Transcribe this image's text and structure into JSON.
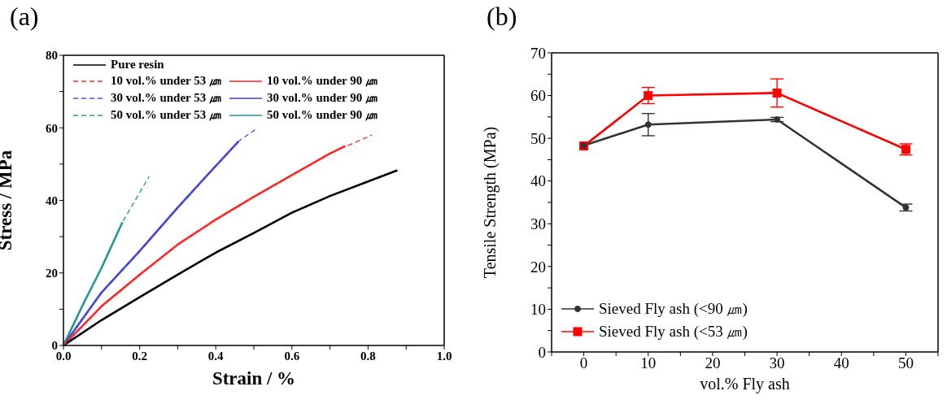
{
  "chart_data": [
    {
      "type": "line",
      "title": "(a)",
      "xlabel": "Strain / %",
      "ylabel": "Stress / MPa",
      "xlim": [
        0,
        1
      ],
      "ylim": [
        0,
        80
      ],
      "xticks": [
        {
          "value": 0,
          "label": "0.0"
        },
        {
          "value": 0.1,
          "label": null
        },
        {
          "value": 0.2,
          "label": "0.2"
        },
        {
          "value": 0.3,
          "label": null
        },
        {
          "value": 0.4,
          "label": "0.4"
        },
        {
          "value": 0.5,
          "label": null
        },
        {
          "value": 0.6,
          "label": "0.6"
        },
        {
          "value": 0.7,
          "label": null
        },
        {
          "value": 0.8,
          "label": "0.8"
        },
        {
          "value": 0.9,
          "label": null
        },
        {
          "value": 1,
          "label": "1.0"
        }
      ],
      "yticks": [
        0,
        {
          "value": 10,
          "label": null
        },
        20,
        {
          "value": 30,
          "label": null
        },
        40,
        {
          "value": 50,
          "label": null
        },
        60,
        {
          "value": 70,
          "label": null
        },
        80
      ],
      "legend": "top left",
      "marker": "none",
      "series": [
        {
          "name": "Pure resin",
          "color": "#000000",
          "line_style": "solid",
          "x": [
            0,
            0.1,
            0.2,
            0.3,
            0.4,
            0.5,
            0.6,
            0.7,
            0.8,
            0.877
          ],
          "values": [
            0,
            7,
            13.3,
            19.5,
            25.6,
            31,
            36.6,
            41.2,
            45.2,
            48.3
          ]
        },
        {
          "name": "10 vol.% under 53 ㎛",
          "color": "#ff3333",
          "line_style": "dashed",
          "x": [
            0,
            0.1,
            0.2,
            0.3,
            0.4,
            0.5,
            0.6,
            0.7,
            0.81
          ],
          "values": [
            0,
            10.8,
            19.5,
            27.8,
            34.7,
            41,
            47,
            52.9,
            58
          ]
        },
        {
          "name": "10 vol.% under 90 ㎛",
          "color": "#ff2020",
          "line_style": "solid",
          "x": [
            0,
            0.1,
            0.2,
            0.3,
            0.4,
            0.5,
            0.6,
            0.7,
            0.74
          ],
          "values": [
            0,
            10.8,
            19.5,
            27.8,
            34.7,
            41,
            47,
            52.9,
            55
          ]
        },
        {
          "name": "30 vol.% under 53 ㎛",
          "color": "#5050e0",
          "line_style": "dashed",
          "x": [
            0,
            0.1,
            0.2,
            0.3,
            0.4,
            0.46,
            0.51
          ],
          "values": [
            0,
            14.6,
            26,
            38,
            49.5,
            56.3,
            60
          ]
        },
        {
          "name": "30 vol.% under 90 ㎛",
          "color": "#3d3dd0",
          "line_style": "solid",
          "x": [
            0,
            0.1,
            0.2,
            0.3,
            0.4,
            0.46
          ],
          "values": [
            0,
            14.6,
            26,
            38,
            49.5,
            56.3
          ]
        },
        {
          "name": "50 vol.% under 53 ㎛",
          "color": "#2a9d7a",
          "line_style": "dashed",
          "x": [
            0,
            0.05,
            0.1,
            0.155,
            0.225
          ],
          "values": [
            0,
            11,
            21.4,
            34,
            46.6
          ]
        },
        {
          "name": "50 vol.% under 90 ㎛",
          "color": "#1a9b96",
          "line_style": "solid",
          "x": [
            0,
            0.05,
            0.1,
            0.155
          ],
          "values": [
            0,
            11,
            21.4,
            34
          ]
        }
      ]
    },
    {
      "type": "line",
      "title": "(b)",
      "xlabel": "vol.% Fly ash",
      "ylabel": "Tensile Strength (MPa)",
      "xlim": [
        -5,
        55
      ],
      "ylim": [
        0,
        70
      ],
      "xticks": [
        {
          "value": -5,
          "label": null
        },
        0,
        {
          "value": 5,
          "label": null
        },
        10,
        {
          "value": 15,
          "label": null
        },
        20,
        {
          "value": 25,
          "label": null
        },
        30,
        {
          "value": 35,
          "label": null
        },
        40,
        {
          "value": 45,
          "label": null
        },
        50,
        {
          "value": 55,
          "label": null
        }
      ],
      "yticks": [
        0,
        {
          "value": 5,
          "label": null
        },
        10,
        {
          "value": 15,
          "label": null
        },
        20,
        {
          "value": 25,
          "label": null
        },
        30,
        {
          "value": 35,
          "label": null
        },
        40,
        {
          "value": 45,
          "label": null
        },
        50,
        {
          "value": 55,
          "label": null
        },
        60,
        {
          "value": 65,
          "label": null
        },
        70
      ],
      "legend": "bottom left",
      "line_style": "solid",
      "x": [
        0,
        10,
        30,
        50
      ],
      "series": [
        {
          "name": "Sieved Fly ash (<90 ㎛)",
          "color": "#333333",
          "marker": "circle",
          "values": [
            48.3,
            53.2,
            54.4,
            33.8
          ],
          "errors": [
            null,
            2.6,
            0.5,
            0.8
          ]
        },
        {
          "name": "Sieved Fly ash (<53 ㎛)",
          "color": "#ff0000",
          "marker": "square",
          "values": [
            48.2,
            60,
            60.6,
            47.4
          ],
          "errors": [
            null,
            1.9,
            3.3,
            1.3
          ]
        }
      ]
    }
  ]
}
